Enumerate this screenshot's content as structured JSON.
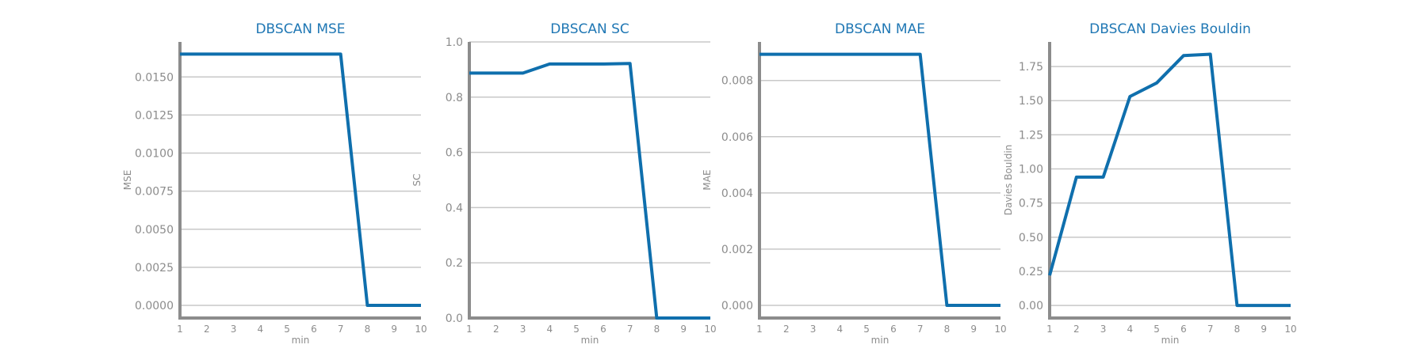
{
  "chart_data": [
    {
      "type": "line",
      "title": "DBSCAN MSE",
      "xlabel": "min",
      "ylabel": "MSE",
      "x": [
        1,
        2,
        3,
        4,
        5,
        6,
        7,
        8,
        9,
        10
      ],
      "series": [
        {
          "values": [
            0.0165,
            0.0165,
            0.0165,
            0.0165,
            0.0165,
            0.0165,
            0.0165,
            0.0,
            0.0,
            0.0
          ]
        }
      ],
      "xticks": [
        "1",
        "2",
        "3",
        "4",
        "5",
        "6",
        "7",
        "8",
        "9",
        "10"
      ],
      "yticks": [
        {
          "value": 0.0,
          "label": "0.0000"
        },
        {
          "value": 0.0025,
          "label": "0.0025"
        },
        {
          "value": 0.005,
          "label": "0.0050"
        },
        {
          "value": 0.0075,
          "label": "0.0075"
        },
        {
          "value": 0.01,
          "label": "0.0100"
        },
        {
          "value": 0.0125,
          "label": "0.0125"
        },
        {
          "value": 0.015,
          "label": "0.0150"
        }
      ],
      "xlim": [
        1,
        10
      ],
      "ylim": [
        -0.00083,
        0.0173
      ],
      "grid": "horizontal",
      "color": "#0f6fad"
    },
    {
      "type": "line",
      "title": "DBSCAN SC",
      "xlabel": "min",
      "ylabel": "SC",
      "x": [
        1,
        2,
        3,
        4,
        5,
        6,
        7,
        8,
        9,
        10
      ],
      "series": [
        {
          "values": [
            0.887,
            0.887,
            0.887,
            0.92,
            0.92,
            0.92,
            0.922,
            0.0,
            0.0,
            0.0
          ]
        }
      ],
      "xticks": [
        "1",
        "2",
        "3",
        "4",
        "5",
        "6",
        "7",
        "8",
        "9",
        "10"
      ],
      "yticks": [
        {
          "value": 0.0,
          "label": "0.0"
        },
        {
          "value": 0.2,
          "label": "0.2"
        },
        {
          "value": 0.4,
          "label": "0.4"
        },
        {
          "value": 0.6,
          "label": "0.6"
        },
        {
          "value": 0.8,
          "label": "0.8"
        },
        {
          "value": 1.0,
          "label": "1.0"
        }
      ],
      "xlim": [
        1,
        10
      ],
      "ylim": [
        0,
        1
      ],
      "grid": "horizontal",
      "color": "#0f6fad"
    },
    {
      "type": "line",
      "title": "DBSCAN MAE",
      "xlabel": "min",
      "ylabel": "MAE",
      "x": [
        1,
        2,
        3,
        4,
        5,
        6,
        7,
        8,
        9,
        10
      ],
      "series": [
        {
          "values": [
            0.00893,
            0.00893,
            0.00893,
            0.00893,
            0.00893,
            0.00893,
            0.00893,
            0.0,
            0.0,
            0.0
          ]
        }
      ],
      "xticks": [
        "1",
        "2",
        "3",
        "4",
        "5",
        "6",
        "7",
        "8",
        "9",
        "10"
      ],
      "yticks": [
        {
          "value": 0.0,
          "label": "0.000"
        },
        {
          "value": 0.002,
          "label": "0.002"
        },
        {
          "value": 0.004,
          "label": "0.004"
        },
        {
          "value": 0.006,
          "label": "0.006"
        },
        {
          "value": 0.008,
          "label": "0.008"
        }
      ],
      "xlim": [
        1,
        10
      ],
      "ylim": [
        -0.00045,
        0.00937
      ],
      "grid": "horizontal",
      "color": "#0f6fad"
    },
    {
      "type": "line",
      "title": "DBSCAN Davies Bouldin",
      "xlabel": "min",
      "ylabel": "Davies Bouldin",
      "x": [
        1,
        2,
        3,
        4,
        5,
        6,
        7,
        8,
        9,
        10
      ],
      "series": [
        {
          "values": [
            0.22,
            0.94,
            0.94,
            1.53,
            1.63,
            1.83,
            1.84,
            0.0,
            0.0,
            0.0
          ]
        }
      ],
      "xticks": [
        "1",
        "2",
        "3",
        "4",
        "5",
        "6",
        "7",
        "8",
        "9",
        "10"
      ],
      "yticks": [
        {
          "value": 0.0,
          "label": "0.00"
        },
        {
          "value": 0.25,
          "label": "0.25"
        },
        {
          "value": 0.5,
          "label": "0.50"
        },
        {
          "value": 0.75,
          "label": "0.75"
        },
        {
          "value": 1.0,
          "label": "1.00"
        },
        {
          "value": 1.25,
          "label": "1.25"
        },
        {
          "value": 1.5,
          "label": "1.50"
        },
        {
          "value": 1.75,
          "label": "1.75"
        }
      ],
      "xlim": [
        1,
        10
      ],
      "ylim": [
        -0.092,
        1.93
      ],
      "grid": "horizontal",
      "color": "#0f6fad"
    }
  ]
}
